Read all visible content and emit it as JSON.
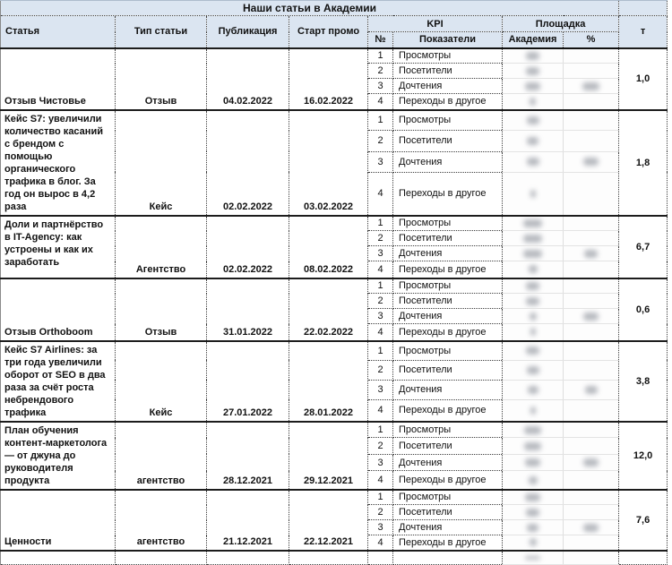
{
  "title": "Наши статьи в Академии",
  "header": {
    "article": "Статья",
    "type": "Тип статьи",
    "publication": "Публикация",
    "promo_start": "Старт промо",
    "kpi": "KPI",
    "kpi_num": "№",
    "kpi_indicators": "Показатели",
    "platform": "Площадка",
    "platform_academy": "Академия",
    "platform_percent": "%",
    "t": "т"
  },
  "kpi_rows": [
    {
      "num": "1",
      "label": "Просмотры"
    },
    {
      "num": "2",
      "label": "Посетители"
    },
    {
      "num": "3",
      "label": "Дочтения"
    },
    {
      "num": "4",
      "label": "Переходы в другое"
    }
  ],
  "redacted_columns": [
    "Академия",
    "%"
  ],
  "articles": [
    {
      "article": "Отзыв Чистовье",
      "type": "Отзыв",
      "publication": "04.02.2022",
      "promo_start": "16.02.2022",
      "t": "1,0",
      "academy_values_blurred": true,
      "blur_widths": {
        "academy": [
          15,
          15,
          17,
          7
        ],
        "percent": 19
      }
    },
    {
      "article": "Кейс S7: увеличили количество касаний с брендом с помощью органического трафика в блог. За год он вырос в 4,2 раза",
      "type": "Кейс",
      "publication": "02.02.2022",
      "promo_start": "03.02.2022",
      "t": "1,8",
      "academy_values_blurred": true,
      "blur_widths": {
        "academy": [
          14,
          13,
          14,
          6
        ],
        "percent": 17
      }
    },
    {
      "article": "Доли и партнёрство в IT-Agency: как устроены и как их заработать",
      "type": "Агентство",
      "publication": "02.02.2022",
      "promo_start": "08.02.2022",
      "t": "6,7",
      "academy_values_blurred": true,
      "blur_widths": {
        "academy": [
          21,
          21,
          21,
          10
        ],
        "percent": 15
      }
    },
    {
      "article": "Отзыв Orthoboom",
      "type": "Отзыв",
      "publication": "31.01.2022",
      "promo_start": "22.02.2022",
      "t": "0,6",
      "academy_values_blurred": true,
      "blur_widths": {
        "academy": [
          15,
          15,
          8,
          6
        ],
        "percent": 17
      }
    },
    {
      "article": "Кейс S7 Airlines: за три года увеличили оборот от SEO в два раза за счёт роста небрендового трафика",
      "type": "Кейс",
      "publication": "27.01.2022",
      "promo_start": "28.01.2022",
      "t": "3,8",
      "academy_values_blurred": true,
      "blur_widths": {
        "academy": [
          15,
          14,
          12,
          6
        ],
        "percent": 14
      }
    },
    {
      "article": "План обучения контент-маркетолога — от джуна до руководителя продукта",
      "type": "агентство",
      "publication": "28.12.2021",
      "promo_start": "29.12.2021",
      "t": "12,0",
      "academy_values_blurred": true,
      "blur_widths": {
        "academy": [
          19,
          19,
          17,
          10
        ],
        "percent": 17
      }
    },
    {
      "article": "Ценности",
      "type": "агентство",
      "publication": "21.12.2021",
      "promo_start": "22.12.2021",
      "t": "7,6",
      "academy_values_blurred": true,
      "blur_widths": {
        "academy": [
          17,
          15,
          13,
          8
        ],
        "percent": 17
      }
    }
  ],
  "colors": {
    "header_bg": "#dbe5f1",
    "grid_line": "#3c3c3c",
    "group_separator": "#1c1c1c",
    "blur_smudge": "#7d828c"
  }
}
